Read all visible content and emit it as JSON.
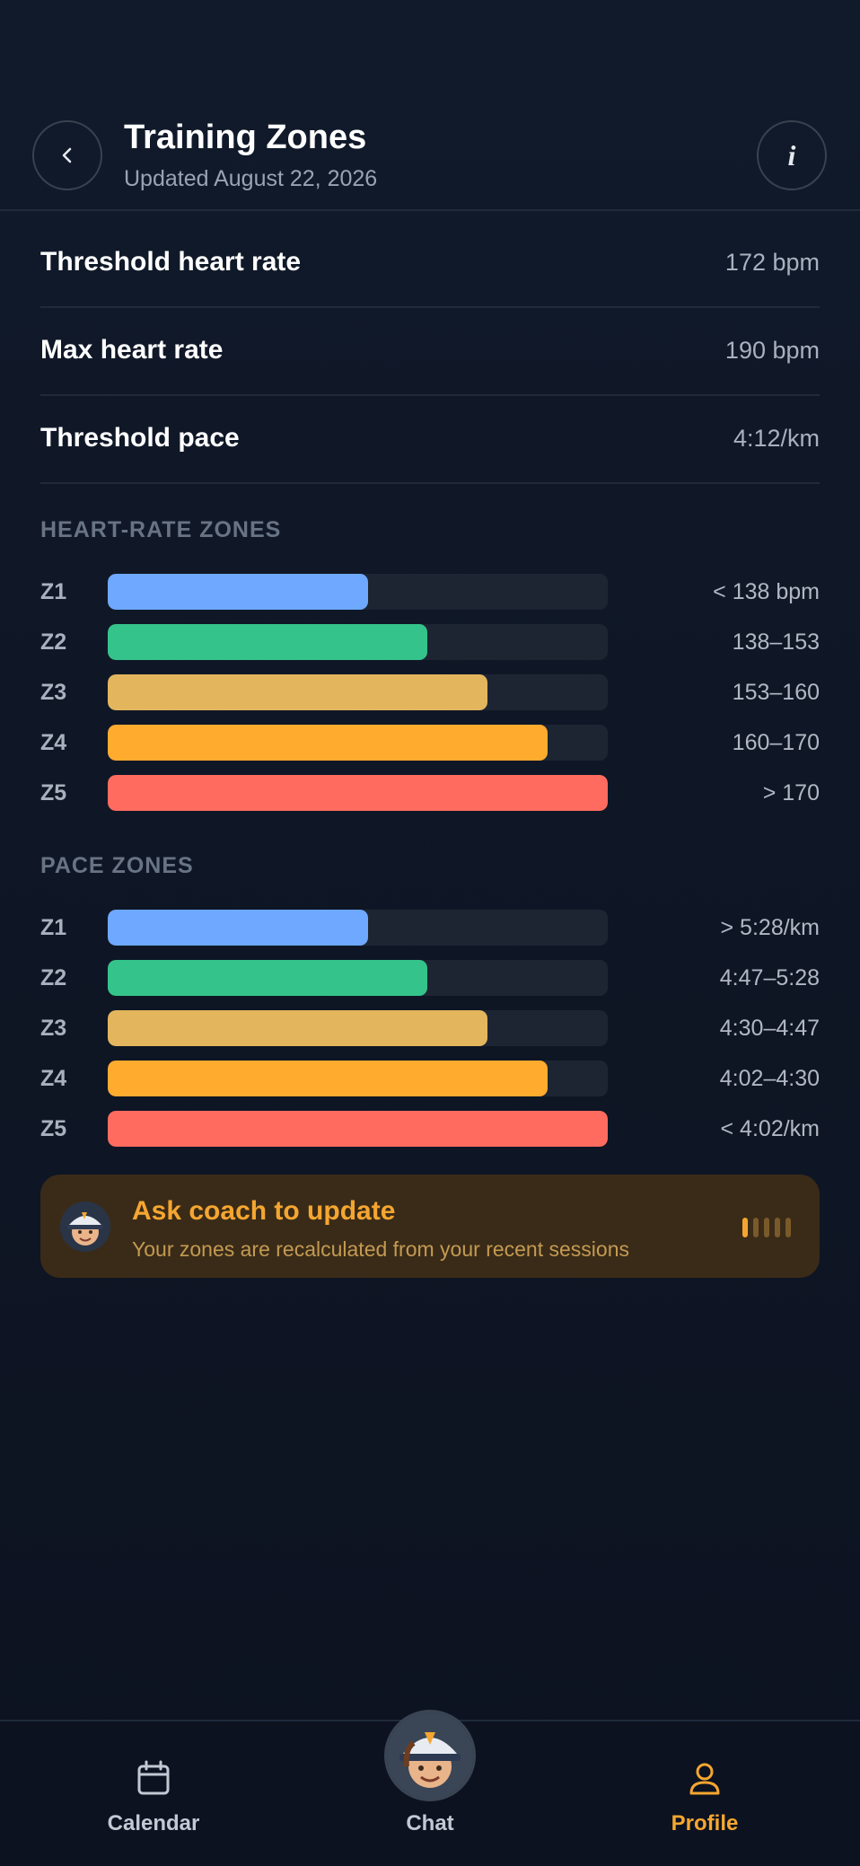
{
  "header": {
    "title": "Training Zones",
    "subtitle": "Updated August 22, 2026",
    "info_glyph": "i",
    "back_icon": "chevron-left-icon",
    "info_icon": "info-icon"
  },
  "metrics": [
    {
      "label": "Threshold heart rate",
      "value": "172 bpm"
    },
    {
      "label": "Max heart rate",
      "value": "190 bpm"
    },
    {
      "label": "Threshold pace",
      "value": "4:12/km"
    }
  ],
  "heart_rate_zones": {
    "title": "HEART-RATE ZONES",
    "zones": [
      {
        "label": "Z1",
        "range": "< 138 bpm",
        "fill": 0.52,
        "color": "#6ea8ff"
      },
      {
        "label": "Z2",
        "range": "138–153",
        "fill": 0.64,
        "color": "#34c48b"
      },
      {
        "label": "Z3",
        "range": "153–160",
        "fill": 0.76,
        "color": "#e3b65e"
      },
      {
        "label": "Z4",
        "range": "160–170",
        "fill": 0.88,
        "color": "#ffab2e"
      },
      {
        "label": "Z5",
        "range": "> 170",
        "fill": 1.0,
        "color": "#ff6b5f"
      }
    ]
  },
  "pace_zones": {
    "title": "PACE ZONES",
    "zones": [
      {
        "label": "Z1",
        "range": "> 5:28/km",
        "fill": 0.52,
        "color": "#6ea8ff"
      },
      {
        "label": "Z2",
        "range": "4:47–5:28",
        "fill": 0.64,
        "color": "#34c48b"
      },
      {
        "label": "Z3",
        "range": "4:30–4:47",
        "fill": 0.76,
        "color": "#e3b65e"
      },
      {
        "label": "Z4",
        "range": "4:02–4:30",
        "fill": 0.88,
        "color": "#ffab2e"
      },
      {
        "label": "Z5",
        "range": "< 4:02/km",
        "fill": 1.0,
        "color": "#ff6b5f"
      }
    ]
  },
  "coach_card": {
    "title": "Ask coach to update",
    "subtitle": "Your zones are recalculated from your recent sessions",
    "bars_active": 1,
    "bars_total": 5,
    "accent": "#f5a630"
  },
  "tabbar": {
    "tabs": [
      {
        "label": "Calendar",
        "icon": "calendar-icon",
        "active": false
      },
      {
        "label": "Chat",
        "icon": "coach-avatar-icon",
        "active": false
      },
      {
        "label": "Profile",
        "icon": "profile-icon",
        "active": true
      }
    ],
    "active_color": "#f5a630",
    "inactive_color": "#c3c9d3"
  }
}
